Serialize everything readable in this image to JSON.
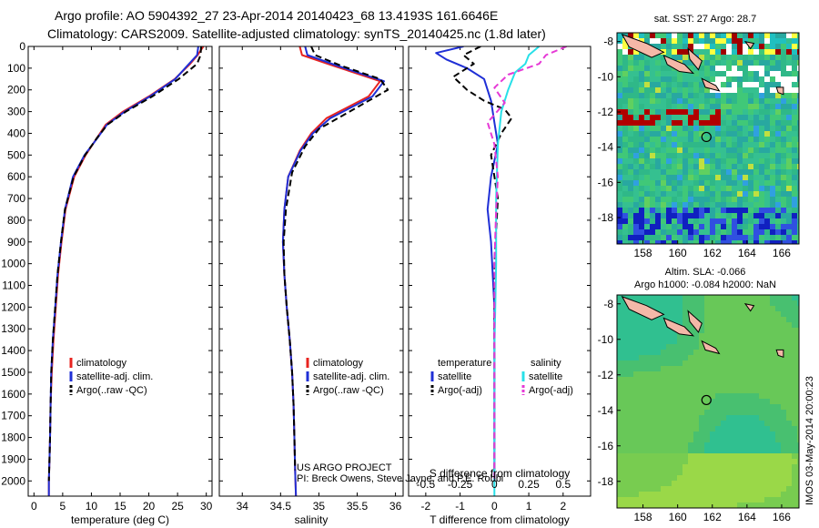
{
  "figure": {
    "title_line1": "Argo profile: AO 5904392_27 23-Apr-2014 20140423_68 13.4193S 161.6646E",
    "title_line2": "Climatology: CARS2009. Satellite-adjusted climatology: synTS_20140425.nc (1.8d later)",
    "credit_line1": "US ARGO PROJECT",
    "credit_line2": "PI: Breck Owens, Steve Jayne, and P.E. Robbi",
    "timestamp": "IMOS 03-May-2014 20:00:23"
  },
  "colors": {
    "climatology": "#e8231f",
    "satellite": "#1f2fd6",
    "argo": "#000000",
    "satellite_salinity": "#28e0e8",
    "argo_salinity": "#e63ad6",
    "map_ocean": "#2fb888",
    "land": "#f4b8a8"
  },
  "chart_data": [
    {
      "type": "line",
      "id": "temperature",
      "xlabel": "temperature (deg C)",
      "ylabel": "",
      "xlim": [
        -1,
        31
      ],
      "ylim": [
        2070,
        0
      ],
      "xticks": [
        0,
        5,
        10,
        15,
        20,
        25,
        30
      ],
      "yticks": [
        0,
        100,
        200,
        300,
        400,
        500,
        600,
        700,
        800,
        900,
        1000,
        1100,
        1200,
        1300,
        1400,
        1500,
        1600,
        1700,
        1800,
        1900,
        2000
      ],
      "legend": [
        "climatology",
        "satellite-adj. clim.",
        "Argo(..raw -QC)"
      ],
      "series": [
        {
          "name": "climatology",
          "color": "#e8231f",
          "style": "solid",
          "x": [
            29.5,
            28.5,
            27.2,
            24.5,
            20,
            15.5,
            12.5,
            11,
            9,
            7,
            5.5,
            4.8,
            4.2,
            3.8,
            3.4,
            3.1,
            2.9,
            2.8,
            2.7,
            2.6,
            2.6
          ],
          "y": [
            0,
            40,
            80,
            150,
            230,
            300,
            360,
            420,
            500,
            600,
            750,
            900,
            1050,
            1200,
            1350,
            1500,
            1650,
            1800,
            1900,
            2000,
            2070
          ]
        },
        {
          "name": "satellite-adj. clim.",
          "color": "#1f2fd6",
          "style": "solid",
          "x": [
            28.6,
            28.4,
            27,
            24.6,
            20.2,
            15.8,
            12.7,
            11.1,
            8.8,
            6.8,
            5.4,
            4.7,
            4.1,
            3.7,
            3.3,
            3.0,
            2.9,
            2.8,
            2.7,
            2.6,
            2.6
          ],
          "y": [
            0,
            40,
            80,
            150,
            230,
            300,
            360,
            420,
            500,
            600,
            750,
            900,
            1050,
            1200,
            1350,
            1500,
            1650,
            1800,
            1900,
            2000,
            2070
          ]
        },
        {
          "name": "Argo(..raw -QC)",
          "color": "#000000",
          "style": "dashed",
          "x": [
            29.1,
            29.0,
            28.4,
            25.2,
            20.6,
            16,
            12.8,
            11,
            8.9,
            6.9,
            5.4,
            4.7,
            4.1,
            3.7,
            3.3,
            3.0,
            2.9,
            2.8,
            2.7,
            2.6
          ],
          "y": [
            0,
            40,
            80,
            150,
            230,
            300,
            360,
            420,
            500,
            600,
            750,
            900,
            1050,
            1200,
            1350,
            1500,
            1650,
            1800,
            1900,
            2000
          ]
        }
      ]
    },
    {
      "type": "line",
      "id": "salinity",
      "xlabel": "salinity",
      "xlim": [
        33.7,
        36.1
      ],
      "ylim": [
        2070,
        0
      ],
      "xticks": [
        34,
        34.5,
        35,
        35.5,
        36
      ],
      "legend": [
        "climatology",
        "satellite-adj. clim.",
        "Argo(..raw -QC)"
      ],
      "series": [
        {
          "name": "climatology",
          "color": "#e8231f",
          "style": "solid",
          "x": [
            34.75,
            34.78,
            35.2,
            35.8,
            35.65,
            35.1,
            34.9,
            34.75,
            34.6,
            34.55,
            34.53,
            34.55,
            34.58,
            34.62,
            34.65,
            34.67,
            34.68,
            34.69,
            34.7
          ],
          "y": [
            0,
            40,
            90,
            160,
            230,
            330,
            400,
            480,
            600,
            750,
            900,
            1050,
            1200,
            1350,
            1500,
            1650,
            1800,
            1950,
            2070
          ]
        },
        {
          "name": "satellite-adj. clim.",
          "color": "#1f2fd6",
          "style": "solid",
          "x": [
            34.82,
            34.85,
            35.25,
            35.85,
            35.7,
            35.15,
            34.92,
            34.76,
            34.6,
            34.55,
            34.53,
            34.55,
            34.58,
            34.62,
            34.65,
            34.67,
            34.68,
            34.69,
            34.7
          ],
          "y": [
            0,
            40,
            90,
            160,
            230,
            330,
            400,
            480,
            600,
            750,
            900,
            1050,
            1200,
            1350,
            1500,
            1650,
            1800,
            1950,
            2070
          ]
        },
        {
          "name": "Argo(..raw -QC)",
          "color": "#000000",
          "style": "dashed",
          "x": [
            34.9,
            34.95,
            35.3,
            35.8,
            35.9,
            35.4,
            35.0,
            34.82,
            34.65,
            34.57,
            34.54,
            34.55,
            34.58,
            34.62,
            34.65,
            34.67,
            34.68,
            34.69
          ],
          "y": [
            0,
            40,
            90,
            150,
            200,
            300,
            380,
            460,
            580,
            750,
            900,
            1050,
            1200,
            1350,
            1500,
            1650,
            1800,
            1950
          ]
        }
      ]
    },
    {
      "type": "line",
      "id": "difference",
      "xlabel": "T difference from climatology",
      "xlabel_top": "S difference from climatology",
      "xlim": [
        -2.5,
        2.8
      ],
      "ylim": [
        2070,
        0
      ],
      "xticks": [
        -2,
        -1,
        0,
        1,
        2
      ],
      "xticks_s": [
        -0.5,
        -0.25,
        0,
        0.25,
        0.5
      ],
      "legend_temp_header": "temperature",
      "legend_sal_header": "salinity",
      "legend": [
        "satellite",
        "Argo(-adj)",
        "satellite",
        "Argo(-adj)"
      ],
      "series": [
        {
          "name": "temperature satellite",
          "color": "#1f2fd6",
          "style": "solid",
          "x": [
            -0.9,
            -1.7,
            -1.4,
            -0.8,
            -0.3,
            -0.1,
            0.0,
            0.1,
            -0.1,
            -0.2,
            -0.1,
            0.0,
            0.0,
            0.0
          ],
          "y": [
            0,
            30,
            60,
            100,
            150,
            250,
            350,
            450,
            600,
            750,
            900,
            1200,
            1600,
            2000
          ]
        },
        {
          "name": "temperature Argo(-adj)",
          "color": "#000000",
          "style": "dashed",
          "x": [
            -0.4,
            -0.9,
            -0.6,
            -1.2,
            -0.8,
            -0.3,
            0.3,
            0.5,
            0.2,
            -0.1,
            0.1,
            0.0,
            0.0,
            0.0
          ],
          "y": [
            0,
            40,
            80,
            140,
            200,
            250,
            290,
            330,
            400,
            500,
            700,
            1000,
            1400,
            1990
          ]
        },
        {
          "name": "salinity satellite",
          "color": "#28e0e8",
          "style": "solid",
          "x": [
            1.3,
            1.0,
            0.9,
            0.6,
            0.4,
            0.2,
            0.1,
            0.05,
            0.05,
            0.0,
            0.0,
            0.0
          ],
          "y": [
            0,
            40,
            80,
            120,
            200,
            300,
            450,
            700,
            1000,
            1400,
            1800,
            2070
          ]
        },
        {
          "name": "salinity Argo(-adj)",
          "color": "#e63ad6",
          "style": "dashed",
          "x": [
            2.1,
            1.5,
            1.3,
            0.4,
            0.0,
            0.3,
            -0.2,
            0.0,
            0.1,
            0.05,
            0.0,
            0.0,
            0.0
          ],
          "y": [
            0,
            40,
            80,
            130,
            190,
            260,
            350,
            450,
            600,
            750,
            1000,
            1400,
            1990
          ]
        }
      ]
    },
    {
      "type": "heatmap",
      "id": "sst_map",
      "title": "sat. SST: 27 Argo: 28.7",
      "xlim": [
        156.5,
        167
      ],
      "ylim": [
        -19.5,
        -7.5
      ],
      "xticks": [
        158,
        160,
        162,
        164,
        166
      ],
      "yticks": [
        -8,
        -10,
        -12,
        -14,
        -16,
        -18
      ],
      "profile_location": [
        161.66,
        -13.42
      ]
    },
    {
      "type": "heatmap",
      "id": "sla_map",
      "title_line1": "Altim. SLA: -0.066",
      "title_line2": "Argo h1000: -0.084 h2000: NaN",
      "xlim": [
        156.5,
        167
      ],
      "ylim": [
        -19.5,
        -7.5
      ],
      "xticks": [
        158,
        160,
        162,
        164,
        166
      ],
      "yticks": [
        -8,
        -10,
        -12,
        -14,
        -16,
        -18
      ],
      "profile_location": [
        161.66,
        -13.42
      ]
    }
  ]
}
